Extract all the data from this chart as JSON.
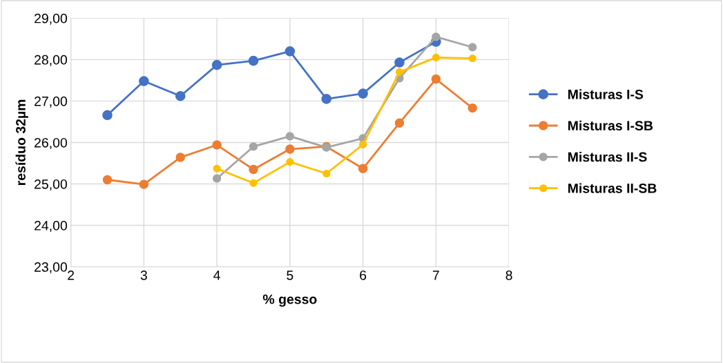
{
  "chart_data": {
    "type": "line",
    "xlabel": "% gesso",
    "ylabel": "resíduo 32µm",
    "xlim": [
      2,
      8
    ],
    "xticks": [
      2,
      3,
      4,
      5,
      6,
      7,
      8
    ],
    "ylim": [
      23,
      29
    ],
    "yticks": [
      {
        "value": 23,
        "label": "23,00"
      },
      {
        "value": 24,
        "label": "24,00"
      },
      {
        "value": 25,
        "label": "25,00"
      },
      {
        "value": 26,
        "label": "26,00"
      },
      {
        "value": 27,
        "label": "27,00"
      },
      {
        "value": 28,
        "label": "28,00"
      },
      {
        "value": 29,
        "label": "29,00"
      }
    ],
    "grid": true,
    "legend": "right",
    "marker": "circle",
    "line_style": "solid",
    "series": [
      {
        "name": "Misturas I-S",
        "color": "#4472c4",
        "x": [
          2.5,
          3,
          3.5,
          4,
          4.5,
          5,
          5.5,
          6,
          6.5,
          7
        ],
        "values": [
          26.66,
          27.48,
          27.12,
          27.87,
          27.97,
          28.2,
          27.05,
          27.18,
          27.93,
          28.43
        ]
      },
      {
        "name": "Misturas I-SB",
        "color": "#ed7d31",
        "x": [
          2.5,
          3,
          3.5,
          4,
          4.5,
          5,
          5.5,
          6,
          6.5,
          7,
          7.5
        ],
        "values": [
          25.1,
          24.99,
          25.64,
          25.94,
          25.35,
          25.84,
          25.9,
          25.37,
          26.47,
          27.53,
          26.83
        ]
      },
      {
        "name": "Misturas II-S",
        "color": "#a5a5a5",
        "x": [
          4,
          4.5,
          5,
          5.5,
          6,
          6.5,
          7,
          7.5
        ],
        "values": [
          25.13,
          25.9,
          26.15,
          25.88,
          26.1,
          27.55,
          28.55,
          28.3
        ]
      },
      {
        "name": "Misturas II-SB",
        "color": "#ffc000",
        "x": [
          4,
          4.5,
          5,
          5.5,
          6,
          6.5,
          7,
          7.5
        ],
        "values": [
          25.37,
          25.02,
          25.53,
          25.25,
          25.95,
          27.7,
          28.05,
          28.03
        ]
      }
    ]
  }
}
